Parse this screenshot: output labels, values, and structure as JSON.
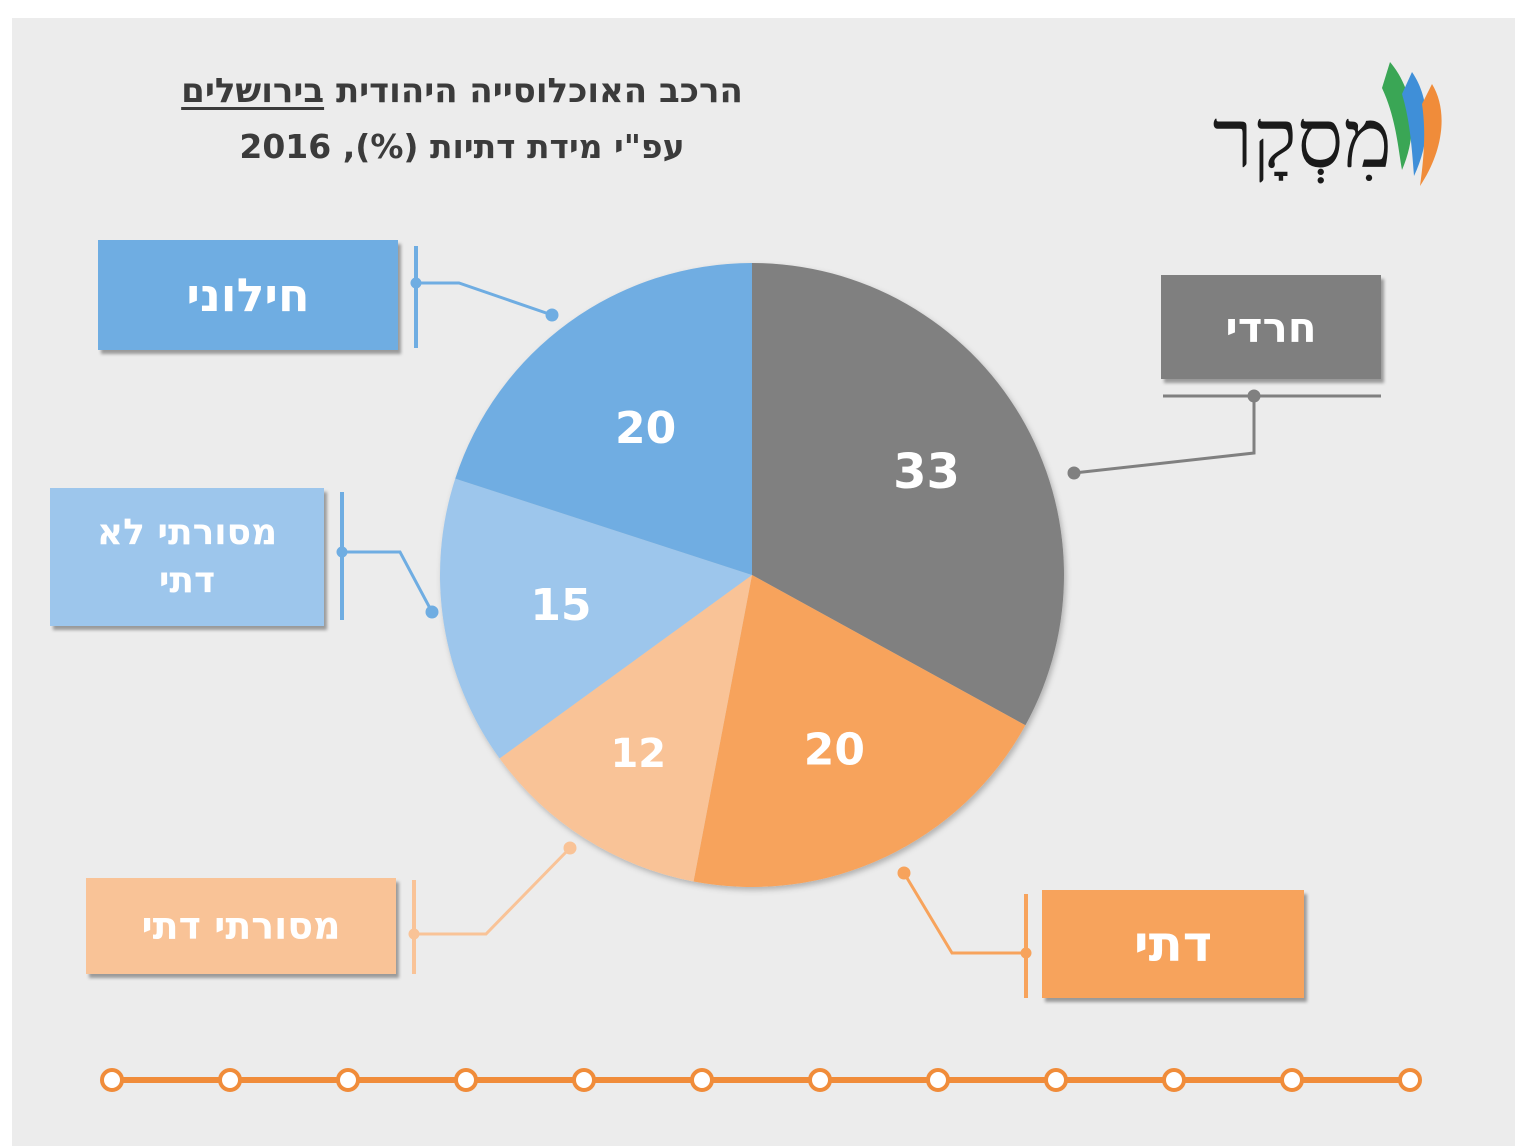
{
  "header": {
    "title_prefix": "הרכב האוכלוסייה היהודית",
    "title_place": "בירושלים",
    "subtitle": "עפ\"י מידת דתיות (%), 2016"
  },
  "logo": {
    "text": "מִסְקָר"
  },
  "colors": {
    "background": "#ececec",
    "haredi": "#808080",
    "dati": "#f7a35c",
    "masorti_dati": "#f9c397",
    "masorti_lo_dati": "#9dc6ec",
    "hiloni": "#6fade2",
    "timeline": "#f08c3a"
  },
  "chart_data": {
    "type": "pie",
    "unit": "%",
    "slices": [
      {
        "name": "חרדי",
        "value": 33,
        "color": "#808080"
      },
      {
        "name": "דתי",
        "value": 20,
        "color": "#f7a35c"
      },
      {
        "name": "מסורתי דתי",
        "value": 12,
        "color": "#f9c397"
      },
      {
        "name": "מסורתי לא דתי",
        "value": 15,
        "color": "#9dc6ec"
      },
      {
        "name": "חילוני",
        "value": 20,
        "color": "#6fade2"
      }
    ]
  },
  "labels": {
    "haredi": "חרדי",
    "dati": "דתי",
    "masorti_dati": "מסורתי דתי",
    "masorti_lo_dati": "מסורתי לא דתי",
    "hiloni": "חילוני"
  }
}
